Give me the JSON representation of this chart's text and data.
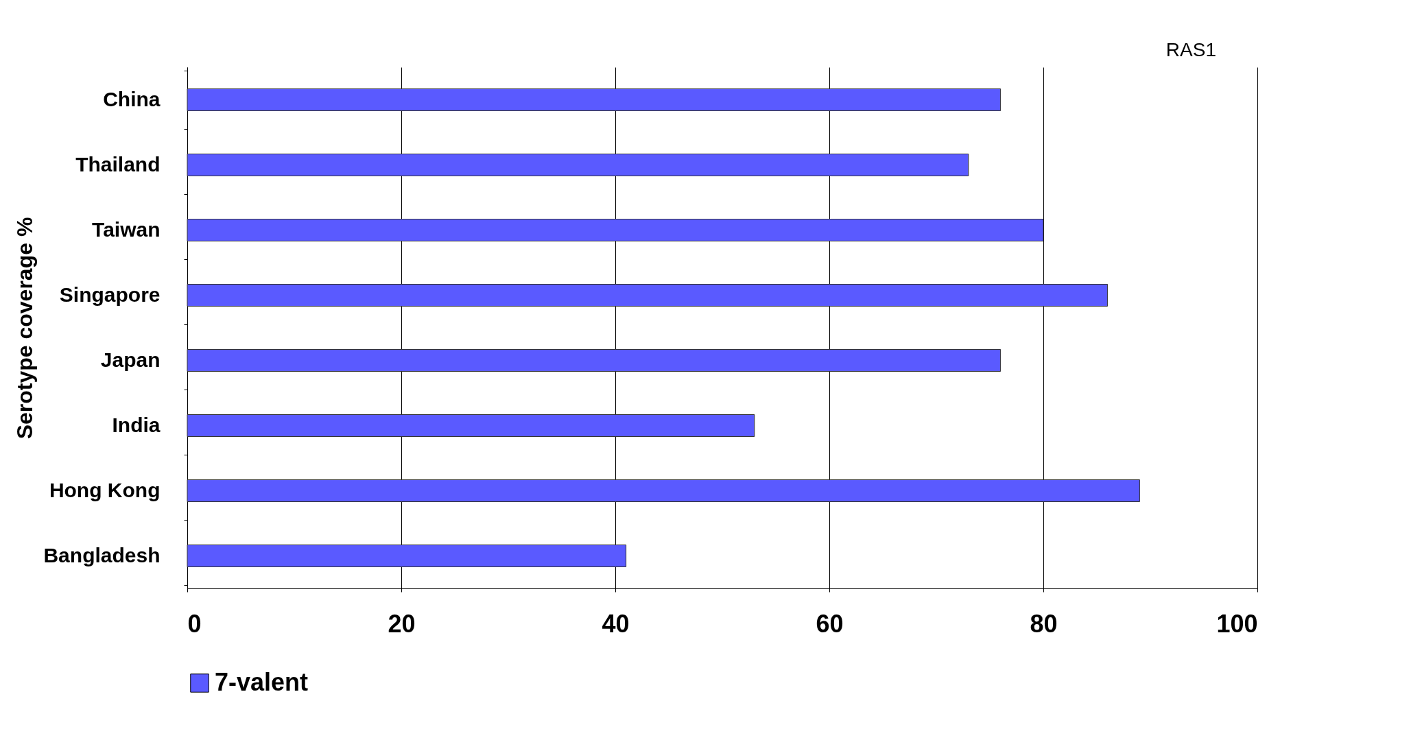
{
  "chart_data": {
    "type": "bar",
    "orientation": "horizontal",
    "ylabel": "Serotype coverage %",
    "categories": [
      "China",
      "Thailand",
      "Taiwan",
      "Singapore",
      "Japan",
      "India",
      "Hong Kong",
      "Bangladesh"
    ],
    "series": [
      {
        "name": "7-valent",
        "color": "#5a5aff",
        "values": [
          76,
          73,
          80,
          86,
          76,
          53,
          89,
          41
        ]
      }
    ],
    "xlim": [
      0,
      100
    ],
    "xticks": [
      0,
      20,
      40,
      60,
      80,
      100
    ],
    "grid": "x",
    "legend": "bottom",
    "annotations": [
      "RAS1"
    ]
  }
}
